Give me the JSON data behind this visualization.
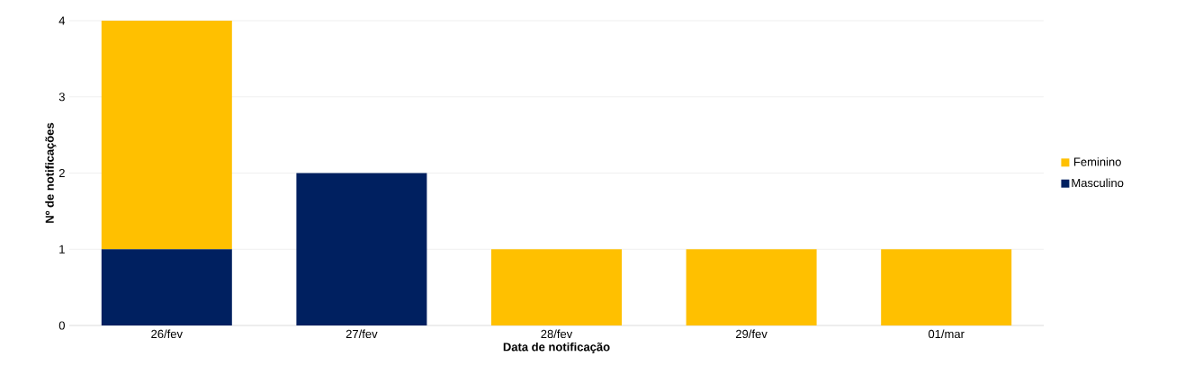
{
  "chart_data": {
    "type": "bar",
    "stacked": true,
    "xlabel": "Data de notificação",
    "ylabel": "Nº de notificações",
    "categories": [
      "26/fev",
      "27/fev",
      "28/fev",
      "29/fev",
      "01/mar"
    ],
    "series": [
      {
        "name": "Masculino",
        "color": "#002060",
        "values": [
          1,
          2,
          0,
          0,
          0
        ]
      },
      {
        "name": "Feminino",
        "color": "#ffc000",
        "values": [
          3,
          0,
          1,
          1,
          1
        ]
      }
    ],
    "ylim": [
      0,
      4
    ],
    "yticks": [
      0,
      1,
      2,
      3,
      4
    ],
    "grid": "y",
    "legend": "right"
  }
}
